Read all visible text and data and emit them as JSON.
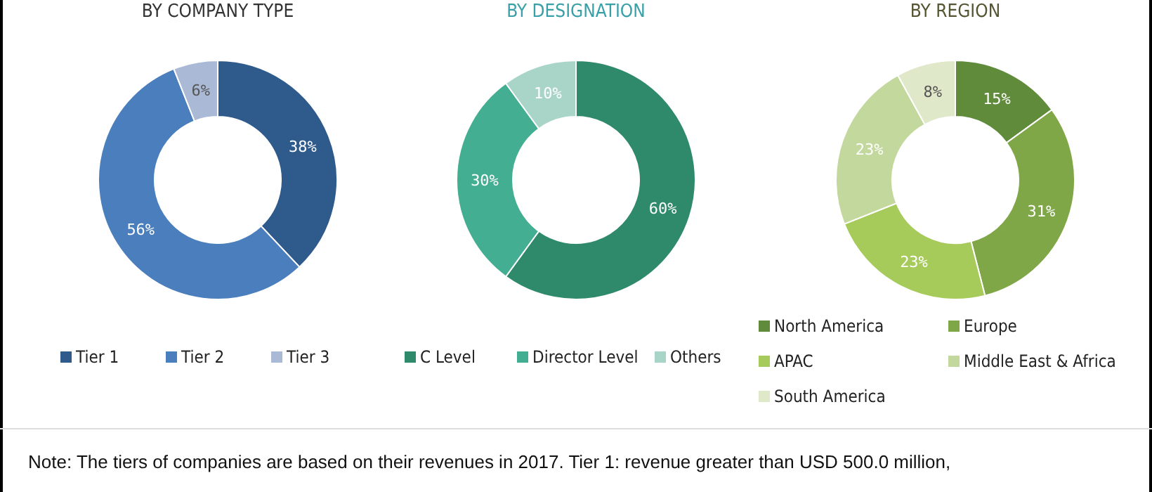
{
  "chart_data": [
    {
      "type": "donut",
      "title": "BY COMPANY TYPE",
      "categories": [
        "Tier 1",
        "Tier 2",
        "Tier 3"
      ],
      "values": [
        38,
        56,
        6
      ],
      "value_labels": [
        "38%",
        "56%",
        "6%"
      ],
      "colors": [
        "#2e5a8c",
        "#4a7ebc",
        "#aab9d6"
      ],
      "legend": "bottom",
      "annotations": [
        "Note: The tiers of companies are based on their revenues in 2017. Tier 1: revenue greater than USD 500.0 million,"
      ]
    },
    {
      "type": "donut",
      "title": "BY DESIGNATION",
      "categories": [
        "C Level",
        "Director Level",
        "Others"
      ],
      "values": [
        60,
        30,
        10
      ],
      "value_labels": [
        "60%",
        "30%",
        "10%"
      ],
      "colors": [
        "#2f8a6c",
        "#43ae92",
        "#a9d5c8"
      ],
      "legend": "bottom"
    },
    {
      "type": "donut",
      "title": "BY REGION",
      "categories": [
        "North America",
        "Europe",
        "APAC",
        "Middle East & Africa",
        "South America"
      ],
      "values": [
        15,
        31,
        23,
        23,
        8
      ],
      "value_labels": [
        "15%",
        "31%",
        "23%",
        "23%",
        "8%"
      ],
      "colors": [
        "#5f8b3b",
        "#80a747",
        "#a7cb5b",
        "#c3d89d",
        "#dfe8c9"
      ],
      "legend": "bottom"
    }
  ]
}
